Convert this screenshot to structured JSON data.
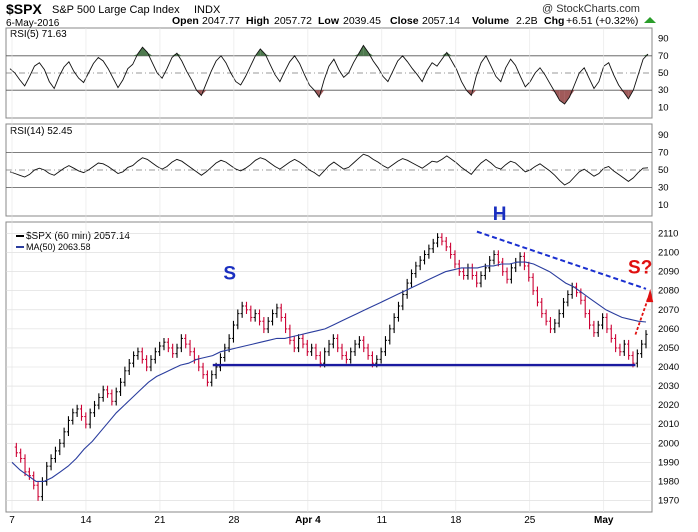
{
  "header": {
    "symbol": "$SPX",
    "name": "S&P 500 Large Cap Index",
    "exchange": "INDX",
    "date": "6-May-2016",
    "open_label": "Open",
    "open": "2047.77",
    "high_label": "High",
    "high": "2057.72",
    "low_label": "Low",
    "low": "2039.45",
    "close_label": "Close",
    "close": "2057.14",
    "volume_label": "Volume",
    "volume": "2.2B",
    "chg_label": "Chg",
    "chg": "+6.51 (+0.32%)",
    "watermark": "@ StockCharts.com"
  },
  "colors": {
    "up": "#000000",
    "down": "#cc0033",
    "ma": "#2a3d9e",
    "neckline": "#1a1aa0",
    "annotation_blue": "#1a2fc0",
    "annotation_red": "#e01010",
    "rsi_fill_high": "#4e7a4e",
    "rsi_fill_low": "#a05a5a",
    "grid": "#d9d9d9"
  },
  "chart_data": [
    {
      "type": "line",
      "panel": "rsi5",
      "title": "RSI(5) 71.63",
      "yticks": [
        10,
        30,
        50,
        70,
        90
      ],
      "ylim": [
        0,
        100
      ],
      "overbought": 70,
      "oversold": 30,
      "midline": 50,
      "x_start_label": "7-Mar",
      "x_end_label": "6-May",
      "values": [
        55,
        50,
        42,
        35,
        46,
        58,
        62,
        54,
        40,
        32,
        46,
        57,
        63,
        52,
        44,
        39,
        50,
        61,
        68,
        64,
        55,
        44,
        33,
        42,
        55,
        60,
        72,
        80,
        74,
        62,
        50,
        44,
        55,
        68,
        73,
        64,
        52,
        42,
        30,
        24,
        38,
        52,
        64,
        70,
        62,
        50,
        40,
        36,
        46,
        58,
        70,
        78,
        72,
        60,
        48,
        40,
        52,
        63,
        70,
        61,
        48,
        36,
        30,
        22,
        42,
        58,
        66,
        54,
        45,
        50,
        62,
        72,
        82,
        74,
        64,
        56,
        46,
        40,
        52,
        64,
        70,
        63,
        55,
        48,
        40,
        53,
        62,
        58,
        66,
        74,
        64,
        54,
        40,
        30,
        24,
        46,
        62,
        70,
        58,
        46,
        40,
        56,
        66,
        59,
        46,
        34,
        40,
        50,
        56,
        48,
        38,
        28,
        18,
        14,
        22,
        36,
        50,
        56,
        44,
        32,
        40,
        58,
        62,
        48,
        36,
        28,
        20,
        30,
        48,
        66,
        72
      ]
    },
    {
      "type": "line",
      "panel": "rsi14",
      "title": "RSI(14) 52.45",
      "yticks": [
        10,
        30,
        50,
        70,
        90
      ],
      "ylim": [
        0,
        100
      ],
      "overbought": 70,
      "oversold": 30,
      "midline": 50,
      "x_start_label": "7-Mar",
      "x_end_label": "6-May",
      "values": [
        48,
        46,
        44,
        42,
        45,
        50,
        52,
        50,
        46,
        44,
        48,
        52,
        55,
        52,
        49,
        47,
        50,
        54,
        58,
        57,
        54,
        50,
        46,
        48,
        53,
        55,
        60,
        64,
        62,
        58,
        54,
        51,
        54,
        59,
        62,
        60,
        56,
        52,
        48,
        44,
        48,
        53,
        58,
        61,
        59,
        55,
        51,
        49,
        52,
        56,
        61,
        64,
        62,
        58,
        54,
        51,
        55,
        59,
        62,
        59,
        55,
        50,
        47,
        43,
        49,
        55,
        59,
        55,
        51,
        53,
        58,
        63,
        68,
        66,
        62,
        59,
        55,
        52,
        56,
        60,
        63,
        61,
        58,
        55,
        52,
        56,
        60,
        59,
        62,
        66,
        62,
        58,
        53,
        49,
        45,
        52,
        58,
        62,
        58,
        53,
        51,
        56,
        60,
        58,
        53,
        48,
        50,
        54,
        57,
        53,
        49,
        44,
        38,
        33,
        36,
        42,
        48,
        51,
        47,
        43,
        46,
        52,
        54,
        49,
        45,
        41,
        37,
        41,
        47,
        52,
        52.45
      ]
    },
    {
      "type": "line",
      "panel": "price",
      "title": "$SPX (60 min) 2057.14",
      "ma_label": "MA(50) 2063.58",
      "ylim": [
        1965,
        2115
      ],
      "yticks": [
        1970,
        1980,
        1990,
        2000,
        2010,
        2020,
        2030,
        2040,
        2050,
        2060,
        2070,
        2080,
        2090,
        2100,
        2110
      ],
      "xlabels": [
        "7",
        "14",
        "21",
        "28",
        "Apr 4",
        "11",
        "18",
        "25",
        "May"
      ],
      "x_label_days": [
        0,
        7,
        14,
        21,
        28,
        35,
        42,
        49,
        56
      ],
      "x_span_days": [
        0,
        60
      ],
      "close_series": [
        1998,
        1995,
        1992,
        1985,
        1983,
        1978,
        1972,
        1980,
        1988,
        1992,
        1996,
        2000,
        2006,
        2012,
        2016,
        2018,
        2014,
        2010,
        2016,
        2020,
        2024,
        2028,
        2026,
        2022,
        2027,
        2032,
        2038,
        2042,
        2046,
        2048,
        2044,
        2040,
        2044,
        2048,
        2051,
        2053,
        2050,
        2047,
        2050,
        2055,
        2052,
        2048,
        2044,
        2040,
        2036,
        2032,
        2036,
        2040,
        2045,
        2050,
        2055,
        2062,
        2068,
        2072,
        2070,
        2066,
        2068,
        2064,
        2060,
        2064,
        2068,
        2071,
        2066,
        2060,
        2054,
        2050,
        2055,
        2052,
        2048,
        2050,
        2046,
        2042,
        2048,
        2052,
        2055,
        2050,
        2046,
        2044,
        2048,
        2052,
        2054,
        2050,
        2046,
        2042,
        2044,
        2048,
        2054,
        2060,
        2066,
        2072,
        2078,
        2084,
        2089,
        2093,
        2096,
        2099,
        2102,
        2105,
        2108,
        2106,
        2103,
        2099,
        2094,
        2090,
        2088,
        2092,
        2088,
        2084,
        2088,
        2092,
        2096,
        2099,
        2095,
        2090,
        2086,
        2092,
        2095,
        2098,
        2093,
        2087,
        2080,
        2074,
        2068,
        2064,
        2060,
        2063,
        2068,
        2074,
        2078,
        2082,
        2079,
        2075,
        2068,
        2062,
        2058,
        2062,
        2066,
        2060,
        2055,
        2050,
        2048,
        2052,
        2046,
        2042,
        2047,
        2052,
        2057.14
      ],
      "ma_series": [
        1990,
        1986,
        1983,
        1980,
        1980,
        1982,
        1985,
        1988,
        1992,
        1997,
        2001,
        2006,
        2011,
        2016,
        2020,
        2024,
        2028,
        2032,
        2035,
        2037,
        2039,
        2041,
        2042,
        2044,
        2045,
        2046,
        2048,
        2049,
        2050,
        2051,
        2052,
        2053,
        2054,
        2055,
        2055,
        2056,
        2057,
        2058,
        2059,
        2060,
        2062,
        2064,
        2066,
        2068,
        2070,
        2072,
        2074,
        2076,
        2078,
        2080,
        2082,
        2084,
        2086,
        2088,
        2090,
        2091,
        2092,
        2092,
        2092,
        2093,
        2093,
        2094,
        2094,
        2095,
        2095,
        2094,
        2092,
        2090,
        2087,
        2084,
        2082,
        2079,
        2076,
        2073,
        2070,
        2068,
        2066,
        2065,
        2064,
        2063.58
      ],
      "neckline": {
        "start_day": 19,
        "end_day": 59,
        "value": 2041
      },
      "resistance_line": {
        "start_day": 44,
        "start_value": 2111,
        "end_day": 60,
        "end_value": 2081
      },
      "annotations": [
        "S",
        "H",
        "S?"
      ]
    }
  ]
}
